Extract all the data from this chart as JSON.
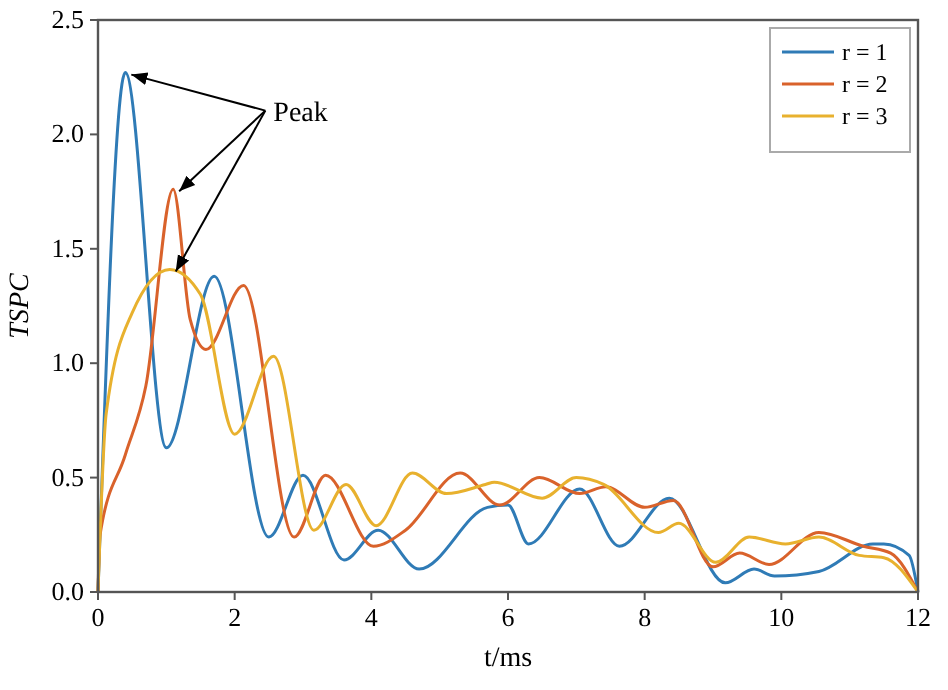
{
  "chart_data": {
    "type": "line",
    "xlabel": "t/ms",
    "ylabel": "TSPC",
    "xlim": [
      0,
      12
    ],
    "ylim": [
      0,
      2.5
    ],
    "xticks": [
      0,
      2,
      4,
      6,
      8,
      10,
      12
    ],
    "yticks": [
      {
        "value": 0,
        "label": "0.0"
      },
      0.5,
      {
        "value": 1,
        "label": "1.0"
      },
      1.5,
      {
        "value": 2,
        "label": "2.0"
      },
      2.5
    ],
    "legend": "top right",
    "grid": false,
    "annotations": [
      {
        "text": "Peak",
        "x": 0.4,
        "y": 2.27
      }
    ],
    "series": [
      {
        "name": "r = 1",
        "color": "#2f7bb6",
        "x": [
          0,
          0.4,
          1.0,
          1.7,
          2.5,
          3.0,
          3.6,
          4.1,
          4.7,
          5.7,
          6.0,
          6.3,
          7.05,
          7.63,
          8.36,
          9.18,
          9.6,
          9.9,
          10.55,
          11.34,
          11.5,
          11.87,
          12
        ],
        "values": [
          0,
          2.27,
          0.63,
          1.38,
          0.24,
          0.51,
          0.14,
          0.27,
          0.1,
          0.37,
          0.38,
          0.21,
          0.45,
          0.2,
          0.41,
          0.04,
          0.1,
          0.07,
          0.09,
          0.21,
          0.21,
          0.16,
          0
        ]
      },
      {
        "name": "r = 2",
        "color": "#d9622b",
        "x": [
          0,
          0.03,
          0.4,
          0.7,
          1.1,
          1.35,
          1.58,
          2.13,
          2.87,
          3.33,
          4.03,
          4.5,
          5.3,
          5.88,
          6.46,
          7.05,
          7.43,
          8.0,
          8.42,
          9.0,
          9.39,
          9.82,
          10.55,
          11.2,
          11.6,
          12
        ],
        "values": [
          0,
          0.25,
          0.6,
          0.9,
          1.76,
          1.19,
          1.06,
          1.34,
          0.24,
          0.51,
          0.2,
          0.27,
          0.52,
          0.38,
          0.5,
          0.43,
          0.46,
          0.37,
          0.4,
          0.11,
          0.17,
          0.12,
          0.26,
          0.2,
          0.17,
          0
        ]
      },
      {
        "name": "r = 3",
        "color": "#e8b12e",
        "x": [
          0,
          0.12,
          0.5,
          1.05,
          1.5,
          2.0,
          2.57,
          3.16,
          3.63,
          4.07,
          4.6,
          5.1,
          5.67,
          5.8,
          6.5,
          7.0,
          7.4,
          8.2,
          8.5,
          9.04,
          9.53,
          10.06,
          10.55,
          11.14,
          11.5,
          12
        ],
        "values": [
          0,
          0.78,
          1.22,
          1.41,
          1.3,
          0.69,
          1.03,
          0.27,
          0.47,
          0.29,
          0.52,
          0.43,
          0.47,
          0.48,
          0.41,
          0.5,
          0.47,
          0.26,
          0.3,
          0.13,
          0.24,
          0.21,
          0.24,
          0.16,
          0.15,
          0
        ]
      }
    ]
  }
}
